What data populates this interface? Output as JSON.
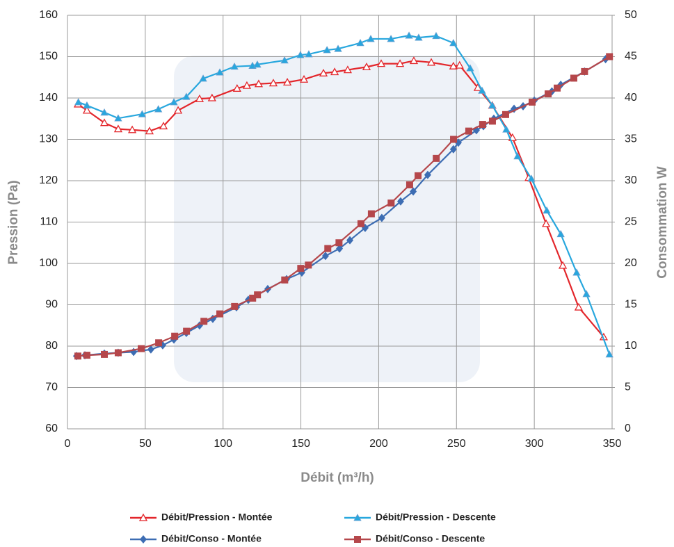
{
  "chart_data": {
    "type": "line",
    "xlabel": "Débit (m³/h)",
    "ylabel": "Pression (Pa)",
    "y2label": "Consommation W",
    "xlim": [
      0,
      350
    ],
    "xticks": [
      0,
      50,
      100,
      150,
      200,
      250,
      300,
      350
    ],
    "ylim": [
      60,
      160
    ],
    "yticks": [
      60,
      70,
      80,
      90,
      100,
      110,
      120,
      130,
      140,
      150,
      160
    ],
    "y2lim": [
      0,
      50
    ],
    "y2ticks": [
      0,
      5,
      10,
      15,
      20,
      25,
      30,
      35,
      40,
      45,
      50
    ],
    "grid": true,
    "series": [
      {
        "name": "Débit/Pression - Montée",
        "color": "#e3262b",
        "marker": "triangle-open",
        "axis": "y",
        "x": [
          6.7,
          12.5,
          23.7,
          32.6,
          41.6,
          52.7,
          61.7,
          71.1,
          84.9,
          92.9,
          109,
          115.3,
          122.9,
          132.3,
          141.3,
          152,
          164.5,
          171.7,
          180.1,
          192.2,
          201.6,
          213.7,
          222.6,
          233.8,
          248,
          252,
          263.7,
          273,
          286,
          296.4,
          307.6,
          318.3,
          328.5,
          344.6
        ],
        "values": [
          138.5,
          137,
          134,
          132.5,
          132.3,
          132,
          133.2,
          137,
          139.8,
          140,
          142.3,
          143,
          143.4,
          143.6,
          143.8,
          144.5,
          146,
          146.3,
          146.8,
          147.5,
          148.3,
          148.3,
          149,
          148.6,
          147.7,
          147.9,
          142.5,
          138.2,
          130.4,
          120.7,
          109.6,
          99.5,
          89.4,
          82.2
        ]
      },
      {
        "name": "Débit/Pression - Descente",
        "color": "#27a7de",
        "marker": "triangle",
        "axis": "y",
        "x": [
          7,
          12.5,
          23.7,
          32.6,
          48,
          58.4,
          68.4,
          76.4,
          87.2,
          97.9,
          107.3,
          118.9,
          122,
          139.5,
          149.7,
          155.1,
          166.8,
          173.9,
          188.2,
          194.9,
          207.9,
          219.5,
          225.7,
          236.9,
          248,
          258.8,
          266.4,
          273,
          282,
          289.2,
          298.1,
          308,
          317,
          327.2,
          333.5,
          348.3
        ],
        "values": [
          139,
          138.2,
          136.5,
          135.1,
          136.1,
          137.3,
          139,
          140.3,
          144.7,
          146.2,
          147.6,
          147.8,
          148.1,
          149.1,
          150.4,
          150.6,
          151.6,
          151.9,
          153.3,
          154.3,
          154.3,
          155.1,
          154.6,
          155,
          153.3,
          147.2,
          141.8,
          138.2,
          132.4,
          125.9,
          120.5,
          112.8,
          107.1,
          97.8,
          92.6,
          78
        ]
      },
      {
        "name": "Débit/Conso - Montée",
        "color": "#3d6db3",
        "marker": "diamond",
        "axis": "y2",
        "x": [
          5.8,
          11.2,
          23.7,
          32.6,
          42.5,
          53.6,
          61.2,
          68.4,
          76.4,
          84.9,
          93.4,
          108.6,
          116.2,
          128.7,
          140.8,
          150.6,
          165.8,
          174.8,
          181.5,
          191.3,
          202,
          214.1,
          222.2,
          231.5,
          248,
          251.2,
          262.8,
          267.3,
          274,
          287,
          292.8,
          300,
          311.3,
          317,
          332.3,
          345.8
        ],
        "values": [
          8.8,
          8.9,
          9.1,
          9.2,
          9.3,
          9.6,
          10.1,
          10.8,
          11.6,
          12.5,
          13.3,
          14.7,
          15.6,
          16.9,
          18.1,
          18.9,
          20.9,
          21.8,
          22.8,
          24.3,
          25.5,
          27.5,
          28.7,
          30.7,
          33.8,
          34.6,
          36.1,
          36.6,
          37.5,
          38.7,
          39,
          39.7,
          40.8,
          41.6,
          43.2,
          44.7
        ]
      },
      {
        "name": "Débit/Conso - Descente",
        "color": "#b5474b",
        "marker": "square",
        "axis": "y2",
        "x": [
          6.7,
          12.5,
          23.7,
          32.6,
          47.4,
          58.6,
          68.9,
          76.5,
          87.7,
          97.9,
          107.4,
          119,
          122.1,
          139.6,
          149.9,
          154.8,
          167.3,
          174.5,
          188.6,
          195.3,
          208,
          219.9,
          225.3,
          237,
          248.1,
          257.9,
          266.8,
          273.1,
          281.6,
          298.6,
          308.9,
          314.7,
          325.4,
          332.3,
          348.3
        ],
        "values": [
          8.8,
          8.9,
          9,
          9.2,
          9.7,
          10.4,
          11.2,
          11.8,
          13,
          13.9,
          14.8,
          15.8,
          16.2,
          18,
          19.4,
          19.8,
          21.8,
          22.5,
          24.8,
          26,
          27.3,
          29.5,
          30.6,
          32.7,
          35,
          36,
          36.8,
          37.2,
          38,
          39.5,
          40.5,
          41.2,
          42.4,
          43.2,
          45
        ]
      }
    ]
  }
}
